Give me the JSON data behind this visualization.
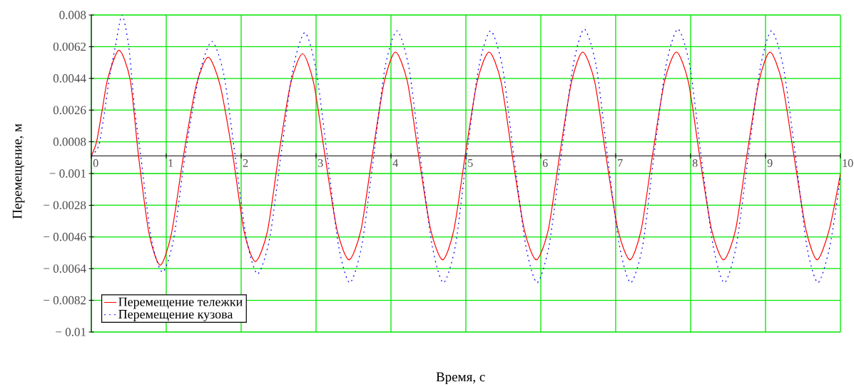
{
  "chart_data": {
    "type": "line",
    "xlabel": "Время, с",
    "ylabel": "Перемещение, м",
    "xlim": [
      0,
      10
    ],
    "ylim": [
      -0.01,
      0.008
    ],
    "xticks": [
      0,
      1,
      2,
      3,
      4,
      5,
      6,
      7,
      8,
      9,
      10
    ],
    "yticks": [
      0.008,
      0.0062,
      0.0044,
      0.0026,
      0.0008,
      {
        "value": -0.001,
        "label": "− 0.001"
      },
      {
        "value": -0.0028,
        "label": "− 0.0028"
      },
      {
        "value": -0.0046,
        "label": "− 0.0046"
      },
      {
        "value": -0.0064,
        "label": "− 0.0064"
      },
      {
        "value": -0.0082,
        "label": "− 0.0082"
      },
      {
        "value": -0.01,
        "label": "− 0.01"
      }
    ],
    "grid": true,
    "legend": "bottom left",
    "marker": "none",
    "series": [
      {
        "name": "Перемещение тележки",
        "color": "#ff0000",
        "line_style": "solid",
        "x": [
          0,
          0.07,
          0.145,
          0.22,
          0.37,
          0.52,
          0.63,
          0.77,
          0.92,
          1.07,
          1.23,
          1.4,
          1.56,
          1.72,
          1.89,
          2.04,
          2.19,
          2.35,
          2.5,
          2.66,
          2.82,
          2.97,
          3.12,
          3.28,
          3.44,
          3.6,
          3.75,
          3.91,
          4.06,
          4.22,
          4.37,
          4.53,
          4.69,
          4.84,
          4.99,
          5.15,
          5.31,
          5.47,
          5.62,
          5.78,
          5.94,
          6.1,
          6.25,
          6.41,
          6.56,
          6.72,
          6.87,
          7.03,
          7.19,
          7.34,
          7.49,
          7.65,
          7.81,
          7.97,
          8.12,
          8.28,
          8.44,
          8.6,
          8.75,
          8.91,
          9.06,
          9.22,
          9.38,
          9.54,
          9.69,
          9.85,
          10
        ],
        "values": [
          0,
          0.0008,
          0.0026,
          0.0044,
          0.006,
          0.0043,
          0,
          -0.0044,
          -0.0062,
          -0.0044,
          0,
          0.004,
          0.0056,
          0.004,
          0,
          -0.0043,
          -0.006,
          -0.0043,
          0,
          0.0041,
          0.0058,
          0.0041,
          0,
          -0.0042,
          -0.0059,
          -0.0042,
          0,
          0.0042,
          0.0059,
          0.0042,
          0,
          -0.0042,
          -0.0059,
          -0.0042,
          0,
          0.0042,
          0.0059,
          0.0042,
          0,
          -0.0042,
          -0.0059,
          -0.0042,
          0,
          0.0042,
          0.0059,
          0.0042,
          0,
          -0.0042,
          -0.0059,
          -0.0042,
          0,
          0.0042,
          0.0059,
          0.0042,
          0,
          -0.0042,
          -0.0059,
          -0.0042,
          0,
          0.0042,
          0.0059,
          0.0042,
          0,
          -0.0042,
          -0.0059,
          -0.0042,
          -0.001
        ]
      },
      {
        "name": "Перемещение кузова",
        "color": "#0000ff",
        "line_style": "dotted",
        "x": [
          0,
          0.1,
          0.18,
          0.24,
          0.32,
          0.41,
          0.5,
          0.58,
          0.66,
          0.8,
          0.95,
          1.1,
          1.25,
          1.44,
          1.61,
          1.77,
          1.92,
          2.07,
          2.22,
          2.38,
          2.53,
          2.69,
          2.85,
          3.0,
          3.15,
          3.3,
          3.45,
          3.61,
          3.77,
          3.92,
          4.08,
          4.24,
          4.39,
          4.55,
          4.7,
          4.86,
          5.01,
          5.17,
          5.33,
          5.49,
          5.64,
          5.8,
          5.95,
          6.11,
          6.27,
          6.43,
          6.58,
          6.74,
          6.89,
          7.05,
          7.2,
          7.36,
          7.51,
          7.67,
          7.83,
          7.99,
          8.14,
          8.3,
          8.45,
          8.61,
          8.77,
          8.93,
          9.08,
          9.24,
          9.4,
          9.55,
          9.7,
          9.86,
          10
        ],
        "values": [
          0,
          0.0006,
          0.0026,
          0.0044,
          0.0062,
          0.008,
          0.0062,
          0.0026,
          0,
          -0.0047,
          -0.0066,
          -0.0047,
          0,
          0.0046,
          0.0065,
          0.0046,
          0,
          -0.0047,
          -0.0067,
          -0.0047,
          0,
          0.0049,
          0.007,
          0.0049,
          0,
          -0.0051,
          -0.0072,
          -0.0051,
          0,
          0.005,
          0.0071,
          0.005,
          0,
          -0.0051,
          -0.0072,
          -0.0051,
          0,
          0.005,
          0.0071,
          0.005,
          0,
          -0.0051,
          -0.0072,
          -0.0051,
          0,
          0.0051,
          0.0072,
          0.0051,
          0,
          -0.0051,
          -0.0072,
          -0.0051,
          0,
          0.0051,
          0.0072,
          0.0051,
          0,
          -0.0051,
          -0.0072,
          -0.0051,
          0,
          0.005,
          0.0071,
          0.005,
          0,
          -0.0051,
          -0.0072,
          -0.0051,
          -0.0012
        ]
      }
    ]
  }
}
